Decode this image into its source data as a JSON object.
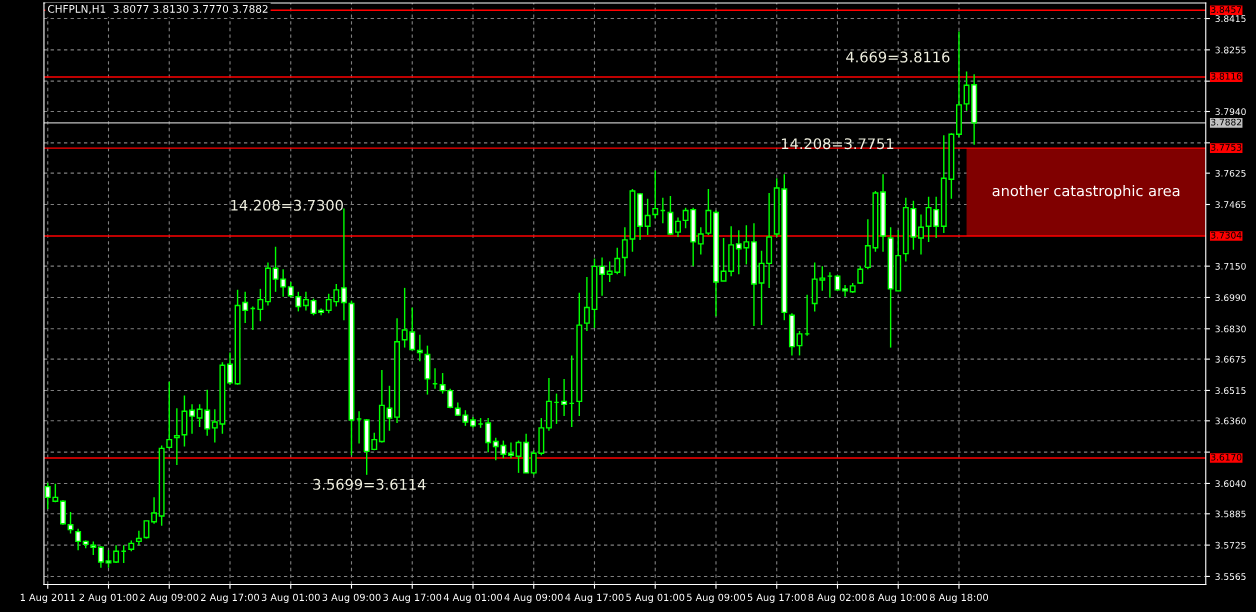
{
  "chart_data": {
    "type": "candlestick",
    "title": "CHFPLN,H1  3.8077 3.8130 3.7770 3.7882",
    "color": "#00ff00",
    "categories": [
      "1 Aug 2011",
      null,
      null,
      null,
      null,
      null,
      null,
      null,
      "2 Aug 01:00",
      null,
      null,
      null,
      null,
      null,
      null,
      null,
      "2 Aug 09:00",
      null,
      null,
      null,
      null,
      null,
      null,
      null,
      "2 Aug 17:00",
      null,
      null,
      null,
      null,
      null,
      null,
      null,
      "3 Aug 01:00",
      null,
      null,
      null,
      null,
      null,
      null,
      null,
      "3 Aug 09:00",
      null,
      null,
      null,
      null,
      null,
      null,
      null,
      "3 Aug 17:00",
      null,
      null,
      null,
      null,
      null,
      null,
      null,
      "4 Aug 01:00",
      null,
      null,
      null,
      null,
      null,
      null,
      null,
      "4 Aug 09:00",
      null,
      null,
      null,
      null,
      null,
      null,
      null,
      "4 Aug 17:00",
      null,
      null,
      null,
      null,
      null,
      null,
      null,
      "5 Aug 01:00",
      null,
      null,
      null,
      null,
      null,
      null,
      null,
      "5 Aug 09:00",
      null,
      null,
      null,
      null,
      null,
      null,
      null,
      "5 Aug 17:00",
      null,
      null,
      null,
      null,
      null,
      null,
      null,
      "8 Aug 02:00",
      null,
      null,
      null,
      null,
      null,
      null,
      null,
      "8 Aug 10:00",
      null,
      null,
      null,
      null,
      null,
      null,
      null,
      "8 Aug 18:00",
      null,
      null,
      null,
      null,
      null,
      null,
      null,
      null,
      null,
      null,
      null,
      null,
      null,
      null,
      null,
      null,
      null,
      null,
      null,
      null,
      null,
      null,
      null,
      null,
      null,
      null,
      null,
      null,
      null,
      null,
      null,
      null
    ],
    "ohlc": [
      [
        3.6024,
        3.6044,
        3.5909,
        3.5969
      ],
      [
        3.5949,
        3.6039,
        3.5944,
        3.5969
      ],
      [
        3.5949,
        3.5954,
        3.5829,
        3.5834
      ],
      [
        3.5829,
        3.5894,
        3.5784,
        3.5804
      ],
      [
        3.5794,
        3.5809,
        3.5699,
        3.5744
      ],
      [
        3.5744,
        3.5749,
        3.5709,
        3.5729
      ],
      [
        3.5724,
        3.5744,
        3.5674,
        3.5714
      ],
      [
        3.5714,
        3.5719,
        3.5609,
        3.5639
      ],
      [
        3.5644,
        3.5699,
        3.5609,
        3.5634
      ],
      [
        3.5639,
        3.5724,
        3.5634,
        3.5694
      ],
      [
        3.5694,
        3.5724,
        3.5634,
        3.5694
      ],
      [
        3.5704,
        3.5749,
        3.5694,
        3.5734
      ],
      [
        3.5744,
        3.5799,
        3.5724,
        3.5759
      ],
      [
        3.5764,
        3.5849,
        3.5759,
        3.5849
      ],
      [
        3.5844,
        3.5969,
        3.5834,
        3.5889
      ],
      [
        3.5874,
        3.6234,
        3.5824,
        3.6219
      ],
      [
        3.6224,
        3.6559,
        3.6219,
        3.6264
      ],
      [
        3.6274,
        3.6424,
        3.6134,
        3.6284
      ],
      [
        3.6289,
        3.6489,
        3.6229,
        3.6409
      ],
      [
        3.6414,
        3.6444,
        3.6294,
        3.6384
      ],
      [
        3.6374,
        3.6444,
        3.6329,
        3.6419
      ],
      [
        3.6414,
        3.6519,
        3.6284,
        3.6319
      ],
      [
        3.6324,
        3.6419,
        3.6249,
        3.6354
      ],
      [
        3.6344,
        3.6659,
        3.6294,
        3.6644
      ],
      [
        3.6649,
        3.6709,
        3.6544,
        3.6554
      ],
      [
        3.6549,
        3.7029,
        3.6544,
        3.6949
      ],
      [
        3.6964,
        3.7019,
        3.6859,
        3.6924
      ],
      [
        3.6934,
        3.6944,
        3.6824,
        3.6934
      ],
      [
        3.6929,
        3.7034,
        3.6869,
        3.6979
      ],
      [
        3.6969,
        3.7169,
        3.6949,
        3.7139
      ],
      [
        3.7139,
        3.7249,
        3.7019,
        3.7084
      ],
      [
        3.7084,
        3.7134,
        3.6994,
        3.7044
      ],
      [
        3.7044,
        3.7069,
        3.6989,
        3.6999
      ],
      [
        3.6994,
        3.7019,
        3.6919,
        3.6944
      ],
      [
        3.6949,
        3.7019,
        3.6924,
        3.6979
      ],
      [
        3.6974,
        3.6984,
        3.6899,
        3.6909
      ],
      [
        3.6924,
        3.6934,
        3.6899,
        3.6914
      ],
      [
        3.6924,
        3.7009,
        3.6909,
        3.6979
      ],
      [
        3.6969,
        3.7059,
        3.6944,
        3.7029
      ],
      [
        3.7039,
        3.7444,
        3.6874,
        3.6964
      ],
      [
        3.6959,
        3.6974,
        3.6184,
        3.6364
      ],
      [
        3.6369,
        3.6409,
        3.6244,
        3.6369
      ],
      [
        3.6364,
        3.6369,
        3.6084,
        3.6204
      ],
      [
        3.6214,
        3.6299,
        3.6209,
        3.6264
      ],
      [
        3.6254,
        3.6619,
        3.6249,
        3.6439
      ],
      [
        3.6424,
        3.6539,
        3.6309,
        3.6374
      ],
      [
        3.6379,
        3.6884,
        3.6349,
        3.6764
      ],
      [
        3.6774,
        3.7039,
        3.6734,
        3.6824
      ],
      [
        3.6814,
        3.6939,
        3.6719,
        3.6724
      ],
      [
        3.6719,
        3.6799,
        3.6664,
        3.6709
      ],
      [
        3.6699,
        3.6744,
        3.6494,
        3.6574
      ],
      [
        3.6549,
        3.6629,
        3.6524,
        3.6549
      ],
      [
        3.6544,
        3.6604,
        3.6499,
        3.6514
      ],
      [
        3.6514,
        3.6524,
        3.6424,
        3.6429
      ],
      [
        3.6424,
        3.6454,
        3.6384,
        3.6389
      ],
      [
        3.6389,
        3.6414,
        3.6334,
        3.6354
      ],
      [
        3.6364,
        3.6379,
        3.6324,
        3.6334
      ],
      [
        3.6344,
        3.6374,
        3.6324,
        3.6344
      ],
      [
        3.6349,
        3.6374,
        3.6199,
        3.6249
      ],
      [
        3.6254,
        3.6274,
        3.6159,
        3.6229
      ],
      [
        3.6234,
        3.6259,
        3.6169,
        3.6189
      ],
      [
        3.6194,
        3.6249,
        3.6169,
        3.6184
      ],
      [
        3.6179,
        3.6259,
        3.6094,
        3.6249
      ],
      [
        3.6249,
        3.6294,
        3.6094,
        3.6094
      ],
      [
        3.6094,
        3.6209,
        3.6084,
        3.6194
      ],
      [
        3.6194,
        3.6374,
        3.6184,
        3.6324
      ],
      [
        3.6324,
        3.6579,
        3.6309,
        3.6459
      ],
      [
        3.6454,
        3.6499,
        3.6344,
        3.6454
      ],
      [
        3.6459,
        3.6574,
        3.6384,
        3.6444
      ],
      [
        3.6449,
        3.6694,
        3.6329,
        3.6449
      ],
      [
        3.6459,
        3.7014,
        3.6384,
        3.6849
      ],
      [
        3.6859,
        3.7094,
        3.6819,
        3.6939
      ],
      [
        3.6929,
        3.7189,
        3.6834,
        3.7149
      ],
      [
        3.7149,
        3.7194,
        3.6999,
        3.7109
      ],
      [
        3.7109,
        3.7174,
        3.7069,
        3.7124
      ],
      [
        3.7119,
        3.7244,
        3.7109,
        3.7189
      ],
      [
        3.7194,
        3.7349,
        3.7099,
        3.7284
      ],
      [
        3.7289,
        3.7544,
        3.7224,
        3.7534
      ],
      [
        3.7519,
        3.7524,
        3.7284,
        3.7354
      ],
      [
        3.7354,
        3.7494,
        3.7309,
        3.7409
      ],
      [
        3.7414,
        3.7639,
        3.7394,
        3.7444
      ],
      [
        3.7434,
        3.7499,
        3.7369,
        3.7434
      ],
      [
        3.7424,
        3.7509,
        3.7309,
        3.7314
      ],
      [
        3.7324,
        3.7399,
        3.7299,
        3.7379
      ],
      [
        3.7384,
        3.7449,
        3.7344,
        3.7434
      ],
      [
        3.7439,
        3.7449,
        3.7149,
        3.7274
      ],
      [
        3.7264,
        3.7349,
        3.7209,
        3.7314
      ],
      [
        3.7319,
        3.7544,
        3.7309,
        3.7434
      ],
      [
        3.7424,
        3.7434,
        3.6894,
        3.7069
      ],
      [
        3.7074,
        3.7294,
        3.7074,
        3.7124
      ],
      [
        3.7124,
        3.7354,
        3.7099,
        3.7259
      ],
      [
        3.7264,
        3.7334,
        3.7109,
        3.7239
      ],
      [
        3.7244,
        3.7359,
        3.7159,
        3.7274
      ],
      [
        3.7274,
        3.7369,
        3.6844,
        3.7059
      ],
      [
        3.7064,
        3.7229,
        3.6849,
        3.7164
      ],
      [
        3.7164,
        3.7524,
        3.7039,
        3.7299
      ],
      [
        3.7314,
        3.7599,
        3.7299,
        3.7549
      ],
      [
        3.7544,
        3.7619,
        3.6874,
        3.6914
      ],
      [
        3.6899,
        3.6909,
        3.6694,
        3.6739
      ],
      [
        3.6744,
        3.6819,
        3.6694,
        3.6804
      ],
      [
        3.6804,
        3.7004,
        3.6794,
        3.6804
      ],
      [
        3.6959,
        3.7169,
        3.6919,
        3.7084
      ],
      [
        3.7079,
        3.7149,
        3.7024,
        3.7089
      ],
      [
        3.7099,
        3.7119,
        3.6989,
        3.7099
      ],
      [
        3.7099,
        3.7104,
        3.7024,
        3.7029
      ],
      [
        3.7034,
        3.7054,
        3.6994,
        3.7024
      ],
      [
        3.7019,
        3.7064,
        3.7014,
        3.7049
      ],
      [
        3.7064,
        3.7149,
        3.7059,
        3.7134
      ],
      [
        3.7144,
        3.7389,
        3.7134,
        3.7254
      ],
      [
        3.7244,
        3.7534,
        3.7224,
        3.7524
      ],
      [
        3.7529,
        3.7619,
        3.7224,
        3.7304
      ],
      [
        3.7294,
        3.7349,
        3.6734,
        3.7034
      ],
      [
        3.7024,
        3.7334,
        3.7024,
        3.7204
      ],
      [
        3.7214,
        3.7499,
        3.7174,
        3.7449
      ],
      [
        3.7444,
        3.7484,
        3.7234,
        3.7299
      ],
      [
        3.7294,
        3.7414,
        3.7209,
        3.7349
      ],
      [
        3.7354,
        3.7504,
        3.7274,
        3.7449
      ],
      [
        3.7439,
        3.7504,
        3.7294,
        3.7354
      ],
      [
        3.7354,
        3.7819,
        3.7319,
        3.7599
      ],
      [
        3.7594,
        3.7829,
        3.7494,
        3.7824
      ],
      [
        3.7824,
        3.8349,
        3.7809,
        3.7974
      ],
      [
        3.7979,
        3.8144,
        3.7944,
        3.8074
      ],
      [
        3.8077,
        3.813,
        3.777,
        3.7882
      ],
      null,
      null,
      null,
      null,
      null,
      null,
      null,
      null,
      null,
      null,
      null,
      null,
      null,
      null,
      null,
      null,
      null,
      null,
      null,
      null,
      null,
      null,
      null,
      null,
      null,
      null,
      null,
      null,
      null,
      null
    ],
    "ylim": [
      3.5524,
      3.8494
    ],
    "yticks": [
      3.8415,
      3.8255,
      {
        "value": 3.8095,
        "label": null
      },
      {
        "value": 3.794,
        "label": "3.7940"
      },
      {
        "value": 3.778,
        "label": null
      },
      3.7625,
      3.7465,
      {
        "value": 3.715,
        "label": "3.7150"
      },
      {
        "value": 3.699,
        "label": "3.6990"
      },
      {
        "value": 3.683,
        "label": "3.6830"
      },
      3.6675,
      3.6515,
      {
        "value": 3.636,
        "label": "3.6360"
      },
      {
        "value": 3.62,
        "label": null
      },
      {
        "value": 3.604,
        "label": "3.6040"
      },
      3.5885,
      3.5725,
      3.5565
    ],
    "grid": true,
    "ref_lines": [
      {
        "axis": "y",
        "value": 3.8457,
        "label": "3.8457",
        "color": "#ff0000"
      },
      {
        "axis": "y",
        "value": 3.8116,
        "label": "3.8116",
        "color": "#ff0000"
      },
      {
        "axis": "y",
        "value": 3.7882,
        "label": "3.7882",
        "color": "#c0c0c0"
      },
      {
        "axis": "y",
        "value": 3.7753,
        "label": "3.7753",
        "color": "#ff0000"
      },
      {
        "axis": "y",
        "value": 3.7304,
        "label": "3.7304",
        "color": "#ff0000"
      },
      {
        "axis": "y",
        "value": 3.617,
        "label": "3.6170",
        "color": "#ff0000"
      }
    ],
    "bands": [
      {
        "axis": "y",
        "from": 3.7304,
        "to": 3.7753,
        "label": "another catastrophic area",
        "color": "#800000"
      }
    ],
    "annotations": [
      "14.208=3.7300",
      "3.5699=3.6114",
      {
        "text": "14.208=3.7751",
        "x": "8 Aug 02:00",
        "y": 3.7769
      },
      "4.669=3.8116"
    ]
  }
}
